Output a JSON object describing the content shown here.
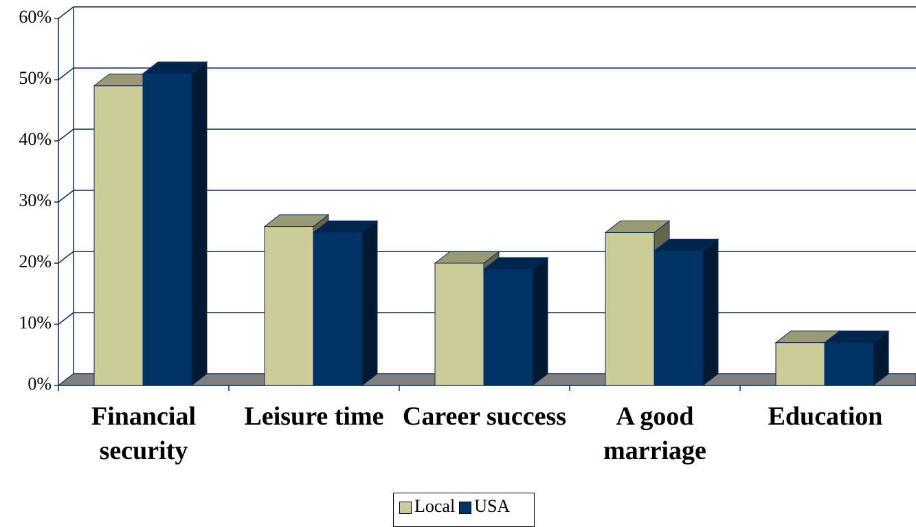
{
  "chart_data": {
    "type": "bar3d",
    "categories": [
      "Financial security",
      "Leisure time",
      "Career success",
      "A good marriage",
      "Education"
    ],
    "series": [
      {
        "name": "Local",
        "color": "#cccc99",
        "values": [
          49,
          26,
          20,
          25,
          7
        ]
      },
      {
        "name": "USA",
        "color": "#003366",
        "values": [
          51,
          25,
          19,
          22,
          7
        ]
      }
    ],
    "ylim": [
      0,
      60
    ],
    "yticks": [
      {
        "value": 0,
        "label": "0%"
      },
      {
        "value": 10,
        "label": "10%"
      },
      {
        "value": 20,
        "label": "20%"
      },
      {
        "value": 30,
        "label": "30%"
      },
      {
        "value": 40,
        "label": "40%"
      },
      {
        "value": 50,
        "label": "50%"
      },
      {
        "value": 60,
        "label": "60%"
      }
    ],
    "grid": true,
    "legend": "bottom"
  }
}
